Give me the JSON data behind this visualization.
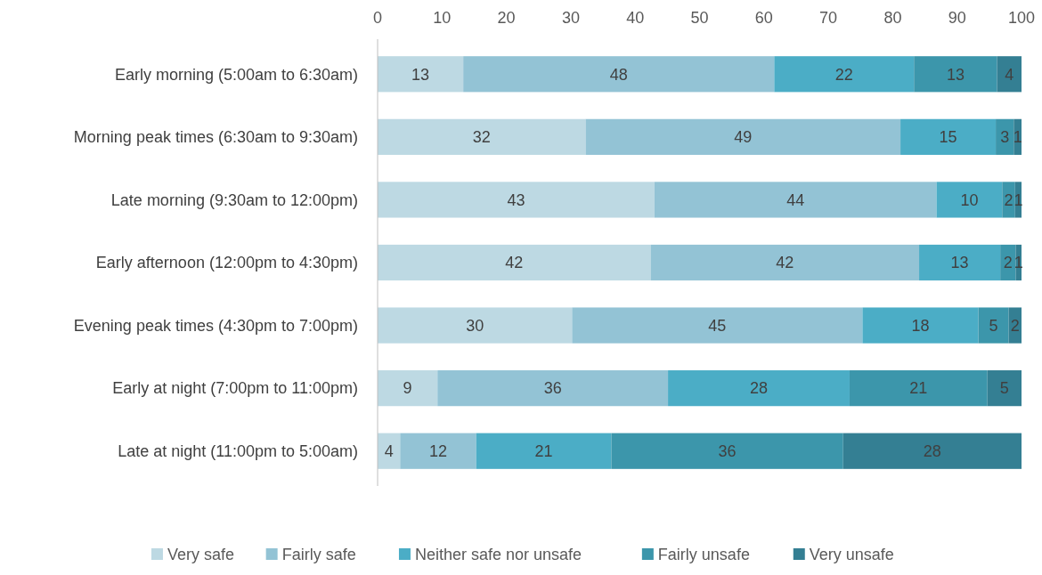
{
  "chart_data": {
    "type": "bar",
    "orientation": "horizontal",
    "stacked": true,
    "categories": [
      "Early morning (5:00am to 6:30am)",
      "Morning peak times (6:30am to 9:30am)",
      "Late morning (9:30am to 12:00pm)",
      "Early afternoon (12:00pm to 4:30pm)",
      "Evening peak times (4:30pm to 7:00pm)",
      "Early at night (7:00pm to 11:00pm)",
      "Late at night (11:00pm to 5:00am)"
    ],
    "series": [
      {
        "name": "Very safe",
        "color": "#bdd9e3",
        "values": [
          13.3,
          32.3,
          43.0,
          42.4,
          30.2,
          9.3,
          3.5
        ],
        "value_labels": [
          "13",
          "32",
          "43",
          "42",
          "30",
          "9",
          "4"
        ]
      },
      {
        "name": "Fairly safe",
        "color": "#93c3d5",
        "values": [
          48.3,
          48.9,
          43.8,
          41.7,
          45.1,
          35.8,
          11.8
        ],
        "value_labels": [
          "48",
          "49",
          "44",
          "42",
          "45",
          "36",
          "12"
        ]
      },
      {
        "name": "Neither safe nor unsafe",
        "color": "#4badc6",
        "values": [
          21.7,
          14.8,
          10.2,
          12.6,
          18.0,
          28.2,
          21.0
        ],
        "value_labels": [
          "22",
          "15",
          "10",
          "13",
          "18",
          "28",
          "21"
        ]
      },
      {
        "name": "Fairly unsafe",
        "color": "#3c96ab",
        "values": [
          12.9,
          2.8,
          2.0,
          2.4,
          4.7,
          21.4,
          36.0
        ],
        "value_labels": [
          "13",
          "3",
          "2",
          "2",
          "5",
          "21",
          "36"
        ]
      },
      {
        "name": "Very unsafe",
        "color": "#347f93",
        "values": [
          3.8,
          1.2,
          1.0,
          0.9,
          2.0,
          5.3,
          27.7
        ],
        "value_labels": [
          "4",
          "1",
          "1",
          "1",
          "2",
          "5",
          "28"
        ]
      }
    ],
    "xlim": [
      0,
      100
    ],
    "xticks": [
      0,
      10,
      20,
      30,
      40,
      50,
      60,
      70,
      80,
      90,
      100
    ],
    "grid": false,
    "legend": "bottom"
  }
}
